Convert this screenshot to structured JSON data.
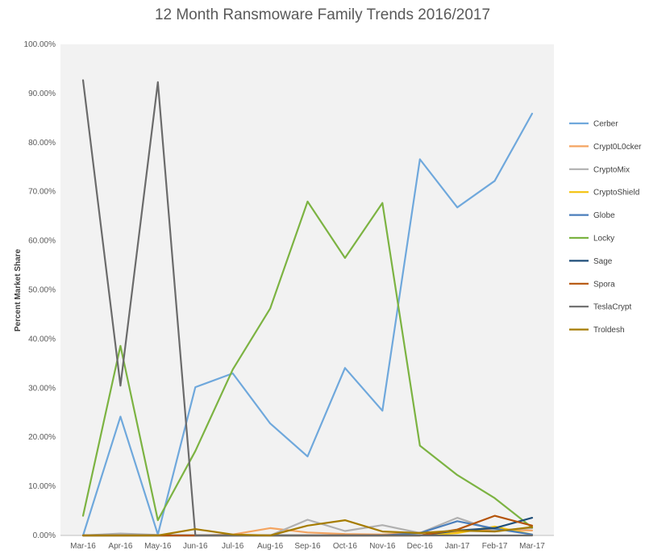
{
  "chart_data": {
    "type": "line",
    "title": "12 Month Ransmoware Family Trends 2016/2017",
    "xlabel": "",
    "ylabel": "Percent Market Share",
    "categories": [
      "Mar-16",
      "Apr-16",
      "May-16",
      "Jun-16",
      "Jul-16",
      "Aug-16",
      "Sep-16",
      "Oct-16",
      "Nov-16",
      "Dec-16",
      "Jan-17",
      "Feb-17",
      "Mar-17"
    ],
    "ylim": [
      0,
      100
    ],
    "yticks": [
      "0.00%",
      "10.00%",
      "20.00%",
      "30.00%",
      "40.00%",
      "50.00%",
      "60.00%",
      "70.00%",
      "80.00%",
      "90.00%",
      "100.00%"
    ],
    "grid": false,
    "legend_position": "right",
    "series": [
      {
        "name": "Cerber",
        "color": "#6fa8dc",
        "values": [
          0,
          24.2,
          0.2,
          30.2,
          33.0,
          22.8,
          16.1,
          34.1,
          25.4,
          76.6,
          66.8,
          72.2,
          85.9
        ]
      },
      {
        "name": "Crypt0L0cker",
        "color": "#f4a460",
        "values": [
          0,
          0,
          0,
          0,
          0.2,
          1.5,
          0.6,
          0.3,
          0.2,
          0.6,
          0.8,
          1.2,
          1.0
        ]
      },
      {
        "name": "CryptoMix",
        "color": "#b0b0b0",
        "values": [
          0,
          0.4,
          0.1,
          0,
          0,
          0,
          3.2,
          0.9,
          2.1,
          0.5,
          3.6,
          1.0,
          1.5
        ]
      },
      {
        "name": "CryptoShield",
        "color": "#f4c20d",
        "values": [
          0,
          0,
          0,
          0,
          0,
          0,
          0,
          0,
          0,
          0,
          0.5,
          1.8,
          0.2
        ]
      },
      {
        "name": "Globe",
        "color": "#4a7ebb",
        "values": [
          0,
          0,
          0,
          0,
          0,
          0,
          0,
          0,
          0,
          0.5,
          2.9,
          1.4,
          0.2
        ]
      },
      {
        "name": "Locky",
        "color": "#7cb342",
        "values": [
          4.0,
          38.6,
          3.1,
          17.2,
          33.8,
          46.2,
          68.0,
          56.5,
          67.7,
          18.3,
          12.3,
          7.6,
          1.6
        ]
      },
      {
        "name": "Sage",
        "color": "#1f4e79",
        "values": [
          0,
          0,
          0,
          0,
          0,
          0,
          0,
          0,
          0,
          0,
          1.0,
          1.5,
          3.6
        ]
      },
      {
        "name": "Spora",
        "color": "#b45309",
        "values": [
          0,
          0,
          0,
          0,
          0,
          0,
          0,
          0,
          0,
          0,
          1.2,
          4.0,
          2.0
        ]
      },
      {
        "name": "TeslaCrypt",
        "color": "#6b6b6b",
        "values": [
          92.7,
          30.5,
          92.3,
          0,
          0,
          0,
          0,
          0,
          0,
          0,
          0,
          0,
          0
        ]
      },
      {
        "name": "Troldesh",
        "color": "#a67c00",
        "values": [
          0,
          0,
          0,
          1.3,
          0.2,
          0,
          2.0,
          3.1,
          0.8,
          0.5,
          1.0,
          0.8,
          1.7
        ]
      }
    ]
  }
}
